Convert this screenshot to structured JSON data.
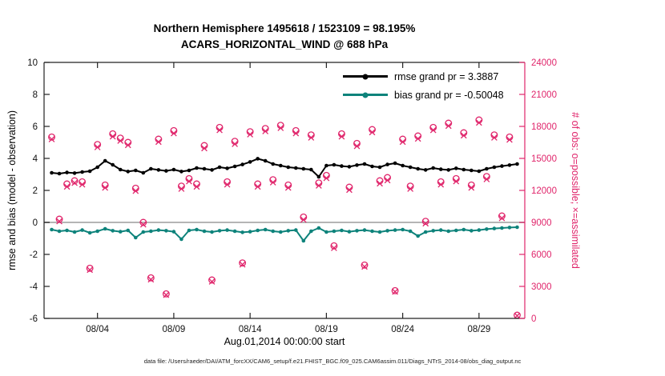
{
  "title": {
    "line1": "Northern Hemisphere 1495618 / 1523109 = 98.195%",
    "line2": "ACARS_HORIZONTAL_WIND @ 688 hPa"
  },
  "labels": {
    "xlabel": "Aug.01,2014 00:00:00 start",
    "ylabel_left": "rmse and bias (model - observation)",
    "ylabel_right": "# of obs: o=possible; ×=assimilated"
  },
  "footer": {
    "text": "data file: /Users/raeder/DAI/ATM_forcXX/CAM6_setup/f.e21.FHIST_BGC.f09_025.CAM6assim.011/Diags_NTrS_2014-08/obs_diag_output.nc"
  },
  "legend": {
    "items": [
      {
        "label": "rmse grand pr = 3.3887",
        "color": "#000000"
      },
      {
        "label": "bias grand pr = -0.50048",
        "color": "#0e837b"
      }
    ]
  },
  "colors": {
    "rmse": "#000000",
    "bias": "#0e837b",
    "obs": "#e0256b",
    "zero_line": "#b5b5b5",
    "axis": "#222222"
  },
  "chart_data": {
    "type": "line",
    "title": "Northern Hemisphere 1495618 / 1523109 = 98.195% | ACARS_HORIZONTAL_WIND @ 688 hPa",
    "xlabel": "Aug.01,2014 00:00:00 start",
    "ylabel_left": "rmse and bias (model - observation)",
    "ylabel_right": "# of obs: o=possible; ×=assimilated",
    "xlim": [
      -0.5,
      31
    ],
    "ylim_left": [
      -6,
      10
    ],
    "ylim_right": [
      0,
      24000
    ],
    "xtick_pos": [
      3,
      8,
      13,
      18,
      23,
      28
    ],
    "xtick_labels": [
      "08/04",
      "08/09",
      "08/14",
      "08/19",
      "08/24",
      "08/29"
    ],
    "yticks_left": [
      -6,
      -4,
      -2,
      0,
      2,
      4,
      6,
      8,
      10
    ],
    "yticks_right": [
      0,
      3000,
      6000,
      9000,
      12000,
      15000,
      18000,
      21000,
      24000
    ],
    "x": [
      0,
      0.5,
      1,
      1.5,
      2,
      2.5,
      3,
      3.5,
      4,
      4.5,
      5,
      5.5,
      6,
      6.5,
      7,
      7.5,
      8,
      8.5,
      9,
      9.5,
      10,
      10.5,
      11,
      11.5,
      12,
      12.5,
      13,
      13.5,
      14,
      14.5,
      15,
      15.5,
      16,
      16.5,
      17,
      17.5,
      18,
      18.5,
      19,
      19.5,
      20,
      20.5,
      21,
      21.5,
      22,
      22.5,
      23,
      23.5,
      24,
      24.5,
      25,
      25.5,
      26,
      26.5,
      27,
      27.5,
      28,
      28.5,
      29,
      29.5,
      30,
      30.5
    ],
    "series": [
      {
        "name": "rmse",
        "axis": "left",
        "values": [
          3.1,
          3.05,
          3.12,
          3.08,
          3.15,
          3.2,
          3.45,
          3.85,
          3.6,
          3.3,
          3.18,
          3.25,
          3.1,
          3.35,
          3.28,
          3.22,
          3.3,
          3.18,
          3.25,
          3.4,
          3.35,
          3.28,
          3.45,
          3.38,
          3.5,
          3.62,
          3.78,
          3.98,
          3.85,
          3.65,
          3.55,
          3.45,
          3.4,
          3.35,
          3.3,
          2.85,
          3.55,
          3.6,
          3.52,
          3.48,
          3.58,
          3.65,
          3.5,
          3.45,
          3.62,
          3.7,
          3.55,
          3.45,
          3.35,
          3.28,
          3.4,
          3.32,
          3.28,
          3.38,
          3.3,
          3.25,
          3.2,
          3.35,
          3.45,
          3.52,
          3.58,
          3.65
        ]
      },
      {
        "name": "bias",
        "axis": "left",
        "values": [
          -0.45,
          -0.55,
          -0.5,
          -0.6,
          -0.48,
          -0.65,
          -0.55,
          -0.4,
          -0.52,
          -0.58,
          -0.5,
          -0.95,
          -0.6,
          -0.55,
          -0.48,
          -0.52,
          -0.58,
          -1.05,
          -0.5,
          -0.45,
          -0.55,
          -0.6,
          -0.52,
          -0.48,
          -0.55,
          -0.62,
          -0.58,
          -0.5,
          -0.45,
          -0.55,
          -0.6,
          -0.52,
          -0.48,
          -1.15,
          -0.55,
          -0.35,
          -0.6,
          -0.55,
          -0.5,
          -0.58,
          -0.52,
          -0.48,
          -0.55,
          -0.6,
          -0.52,
          -0.48,
          -0.45,
          -0.55,
          -0.85,
          -0.6,
          -0.52,
          -0.48,
          -0.55,
          -0.5,
          -0.45,
          -0.52,
          -0.48,
          -0.42,
          -0.38,
          -0.35,
          -0.32,
          -0.3
        ]
      },
      {
        "name": "possible",
        "axis": "right",
        "marker": "circle",
        "values": [
          17000,
          9300,
          12600,
          12900,
          12800,
          4700,
          16300,
          12500,
          17300,
          16900,
          16500,
          12200,
          9000,
          3800,
          16800,
          2300,
          17600,
          12400,
          13100,
          12600,
          16200,
          3600,
          17900,
          12800,
          16600,
          5200,
          17500,
          12600,
          17800,
          13000,
          18100,
          12500,
          17600,
          9500,
          17200,
          12700,
          13400,
          6800,
          17300,
          12300,
          16400,
          5000,
          17700,
          12900,
          13200,
          2600,
          16800,
          12400,
          17100,
          9100,
          17900,
          12800,
          18300,
          13100,
          17400,
          12500,
          18600,
          13300,
          17200,
          9600,
          17000,
          300
        ]
      },
      {
        "name": "assimilated",
        "axis": "right",
        "marker": "x",
        "values": [
          16800,
          9100,
          12350,
          12700,
          12550,
          4550,
          16050,
          12250,
          17050,
          16650,
          16250,
          11950,
          8800,
          3650,
          16550,
          2200,
          17350,
          12150,
          12850,
          12350,
          15950,
          3450,
          17650,
          12550,
          16350,
          5050,
          17250,
          12350,
          17550,
          12750,
          17850,
          12250,
          17350,
          9250,
          16950,
          12450,
          13150,
          6600,
          17050,
          12050,
          16150,
          4850,
          17450,
          12650,
          12950,
          2500,
          16550,
          12150,
          16850,
          8900,
          17650,
          12550,
          18050,
          12850,
          17150,
          12250,
          18350,
          13050,
          16950,
          9400,
          16750,
          250
        ]
      }
    ],
    "legend_entries": [
      "rmse grand pr = 3.3887",
      "bias grand pr = -0.50048"
    ],
    "grid": false,
    "legend_position": "top-right-inside"
  }
}
